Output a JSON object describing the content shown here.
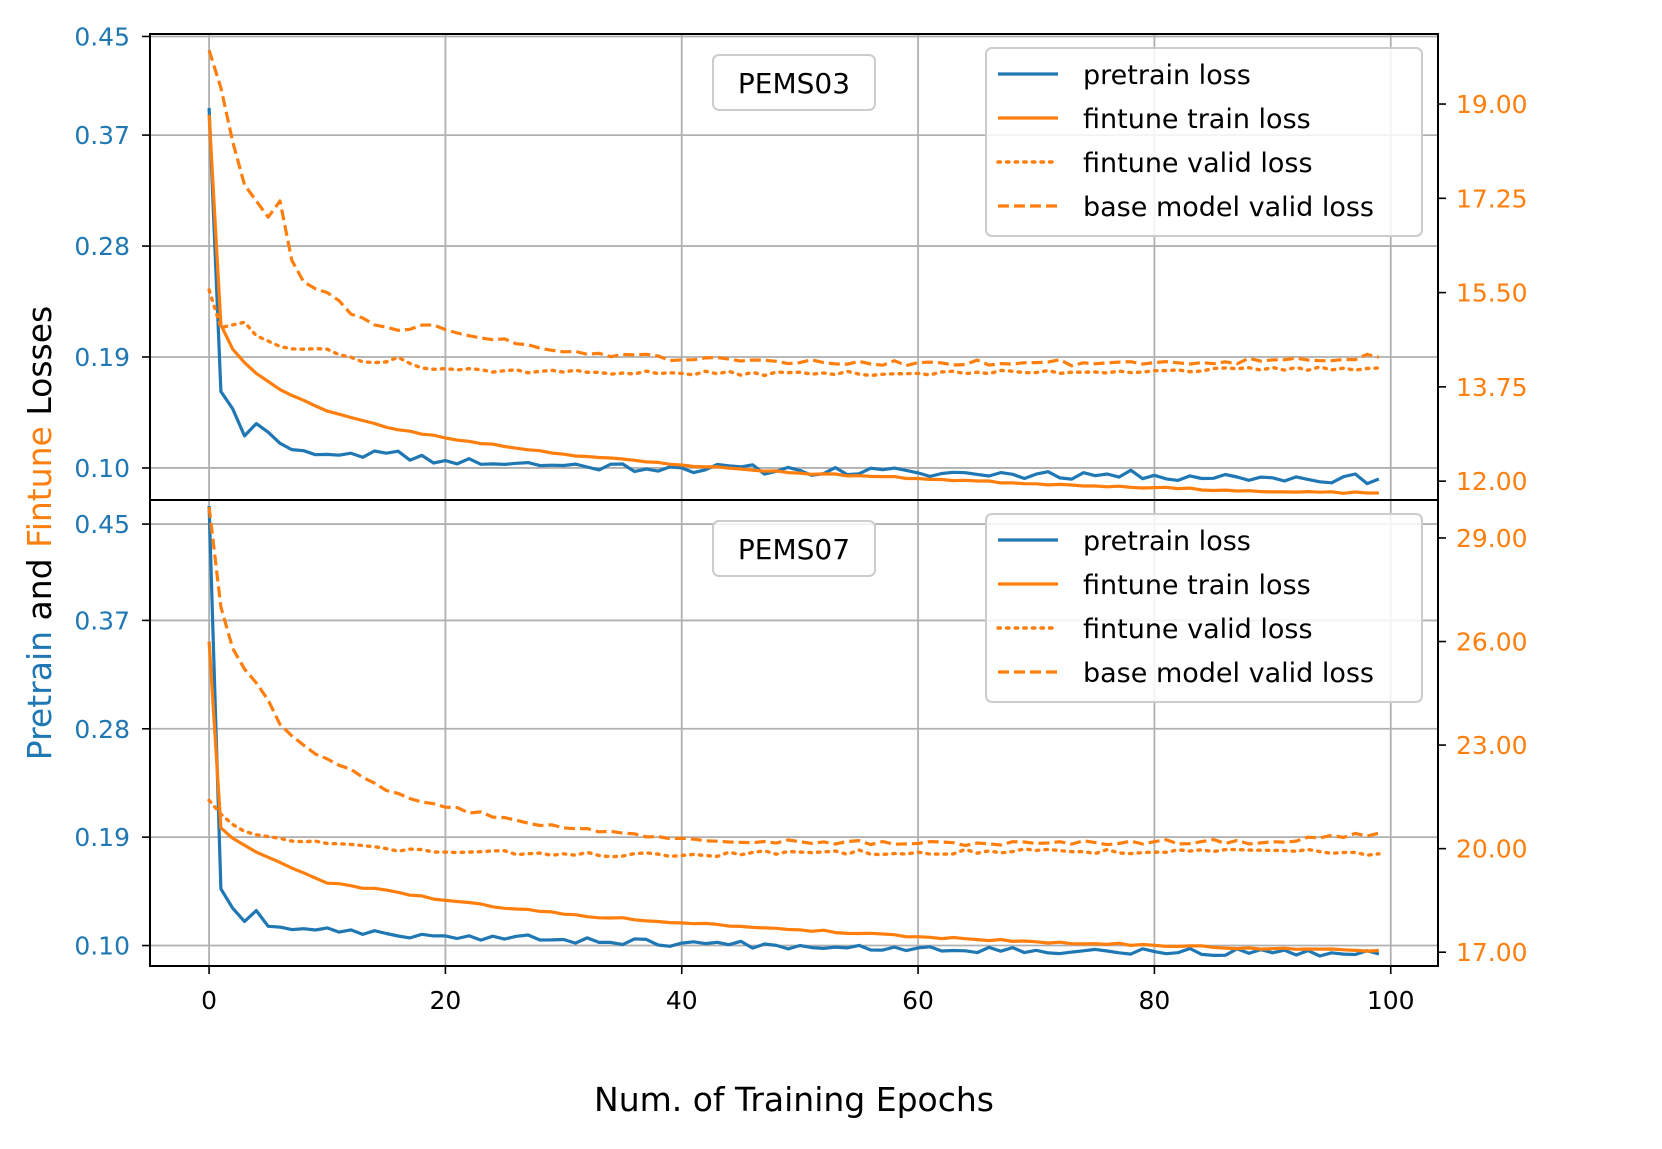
{
  "chart_data": {
    "type": "line",
    "xlabel": "Num. of Training Epochs",
    "ylabel_parts": [
      {
        "text": "Pretrain",
        "color": "#1f77b4"
      },
      {
        "text": " and ",
        "color": "#000000"
      },
      {
        "text": "Fintune",
        "color": "#ff7f0e"
      },
      {
        "text": " Losses",
        "color": "#000000"
      }
    ],
    "colors": {
      "pretrain": "#1f77b4",
      "finetune": "#ff7f0e",
      "grid": "#b0b0b0"
    },
    "xlim": [
      -5,
      104
    ],
    "xticks": [
      0,
      20,
      40,
      60,
      80,
      100
    ],
    "xtick_labels": [
      "0",
      "20",
      "40",
      "60",
      "80",
      "100"
    ],
    "legend_labels": [
      "pretrain loss",
      "fintune train loss",
      "fintune valid loss",
      "base model valid loss"
    ],
    "panels": [
      {
        "dataset": "PEMS03",
        "ylim_left": [
          0.074,
          0.452
        ],
        "yticks_left": [
          0.1,
          0.19,
          0.28,
          0.37,
          0.45
        ],
        "ytick_labels_left": [
          "0.10",
          "0.19",
          "0.28",
          "0.37",
          "0.45"
        ],
        "ylim_right": [
          11.65,
          20.3
        ],
        "yticks_right": [
          12.0,
          13.75,
          15.5,
          17.25,
          19.0
        ],
        "ytick_labels_right": [
          "12.00",
          "13.75",
          "15.50",
          "17.25",
          "19.00"
        ],
        "series": [
          {
            "name": "pretrain loss",
            "axis": "left",
            "style": "solid",
            "anchors": [
              [
                0,
                0.392
              ],
              [
                1,
                0.162
              ],
              [
                2,
                0.148
              ],
              [
                3,
                0.126
              ],
              [
                4,
                0.136
              ],
              [
                5,
                0.129
              ],
              [
                6,
                0.12
              ],
              [
                8,
                0.114
              ],
              [
                10,
                0.111
              ],
              [
                12,
                0.112
              ],
              [
                15,
                0.112
              ],
              [
                20,
                0.106
              ],
              [
                30,
                0.102
              ],
              [
                40,
                0.1
              ],
              [
                50,
                0.098
              ],
              [
                60,
                0.096
              ],
              [
                70,
                0.095
              ],
              [
                80,
                0.094
              ],
              [
                90,
                0.092
              ],
              [
                99,
                0.091
              ]
            ],
            "jitter": 0.004,
            "seed": 11
          },
          {
            "name": "fintune train loss",
            "axis": "right",
            "style": "solid",
            "anchors": [
              [
                0,
                18.8
              ],
              [
                1,
                14.9
              ],
              [
                2,
                14.45
              ],
              [
                3,
                14.2
              ],
              [
                4,
                14.0
              ],
              [
                6,
                13.7
              ],
              [
                8,
                13.5
              ],
              [
                10,
                13.3
              ],
              [
                15,
                13.0
              ],
              [
                20,
                12.8
              ],
              [
                30,
                12.5
              ],
              [
                40,
                12.3
              ],
              [
                50,
                12.15
              ],
              [
                60,
                12.05
              ],
              [
                70,
                11.95
              ],
              [
                80,
                11.88
              ],
              [
                90,
                11.8
              ],
              [
                99,
                11.78
              ]
            ],
            "jitter": 0.015,
            "seed": 23
          },
          {
            "name": "fintune valid loss",
            "axis": "right",
            "style": "dotted",
            "anchors": [
              [
                0,
                15.55
              ],
              [
                1,
                14.85
              ],
              [
                2,
                14.9
              ],
              [
                3,
                14.95
              ],
              [
                4,
                14.7
              ],
              [
                6,
                14.5
              ],
              [
                8,
                14.45
              ],
              [
                10,
                14.45
              ],
              [
                12,
                14.3
              ],
              [
                14,
                14.2
              ],
              [
                16,
                14.3
              ],
              [
                18,
                14.1
              ],
              [
                25,
                14.05
              ],
              [
                40,
                14.0
              ],
              [
                60,
                14.0
              ],
              [
                80,
                14.05
              ],
              [
                99,
                14.1
              ]
            ],
            "jitter": 0.04,
            "seed": 37
          },
          {
            "name": "base model valid loss",
            "axis": "right",
            "style": "dashed",
            "anchors": [
              [
                0,
                20.0
              ],
              [
                1,
                19.3
              ],
              [
                2,
                18.3
              ],
              [
                3,
                17.5
              ],
              [
                4,
                17.2
              ],
              [
                5,
                16.9
              ],
              [
                6,
                17.2
              ],
              [
                7,
                16.1
              ],
              [
                8,
                15.7
              ],
              [
                10,
                15.5
              ],
              [
                12,
                15.1
              ],
              [
                14,
                14.9
              ],
              [
                16,
                14.8
              ],
              [
                19,
                14.9
              ],
              [
                22,
                14.7
              ],
              [
                26,
                14.55
              ],
              [
                30,
                14.4
              ],
              [
                35,
                14.35
              ],
              [
                40,
                14.25
              ],
              [
                50,
                14.2
              ],
              [
                60,
                14.2
              ],
              [
                70,
                14.2
              ],
              [
                80,
                14.2
              ],
              [
                90,
                14.25
              ],
              [
                99,
                14.3
              ]
            ],
            "jitter": 0.06,
            "seed": 51
          }
        ]
      },
      {
        "dataset": "PEMS07",
        "ylim_left": [
          0.083,
          0.47
        ],
        "yticks_left": [
          0.1,
          0.19,
          0.28,
          0.37,
          0.45
        ],
        "ytick_labels_left": [
          "0.10",
          "0.19",
          "0.28",
          "0.37",
          "0.45"
        ],
        "ylim_right": [
          16.6,
          30.1
        ],
        "yticks_right": [
          17.0,
          20.0,
          23.0,
          26.0,
          29.0
        ],
        "ytick_labels_right": [
          "17.00",
          "20.00",
          "23.00",
          "26.00",
          "29.00"
        ],
        "series": [
          {
            "name": "pretrain loss",
            "axis": "left",
            "style": "solid",
            "anchors": [
              [
                0,
                0.465
              ],
              [
                1,
                0.147
              ],
              [
                2,
                0.131
              ],
              [
                3,
                0.12
              ],
              [
                4,
                0.129
              ],
              [
                5,
                0.116
              ],
              [
                8,
                0.114
              ],
              [
                12,
                0.113
              ],
              [
                15,
                0.11
              ],
              [
                20,
                0.108
              ],
              [
                30,
                0.105
              ],
              [
                40,
                0.102
              ],
              [
                50,
                0.1
              ],
              [
                60,
                0.098
              ],
              [
                70,
                0.096
              ],
              [
                80,
                0.095
              ],
              [
                90,
                0.094
              ],
              [
                99,
                0.093
              ]
            ],
            "jitter": 0.003,
            "seed": 67
          },
          {
            "name": "fintune train loss",
            "axis": "right",
            "style": "solid",
            "anchors": [
              [
                0,
                26.0
              ],
              [
                1,
                20.6
              ],
              [
                2,
                20.3
              ],
              [
                3,
                20.1
              ],
              [
                4,
                19.9
              ],
              [
                6,
                19.6
              ],
              [
                8,
                19.3
              ],
              [
                10,
                19.0
              ],
              [
                15,
                18.8
              ],
              [
                20,
                18.5
              ],
              [
                30,
                18.1
              ],
              [
                40,
                17.85
              ],
              [
                50,
                17.65
              ],
              [
                60,
                17.45
              ],
              [
                70,
                17.3
              ],
              [
                80,
                17.2
              ],
              [
                90,
                17.1
              ],
              [
                99,
                17.05
              ]
            ],
            "jitter": 0.03,
            "seed": 79
          },
          {
            "name": "fintune valid loss",
            "axis": "right",
            "style": "dotted",
            "anchors": [
              [
                0,
                21.4
              ],
              [
                1,
                21.0
              ],
              [
                2,
                20.7
              ],
              [
                3,
                20.5
              ],
              [
                4,
                20.4
              ],
              [
                6,
                20.3
              ],
              [
                8,
                20.2
              ],
              [
                10,
                20.15
              ],
              [
                15,
                20.0
              ],
              [
                20,
                19.9
              ],
              [
                30,
                19.85
              ],
              [
                40,
                19.8
              ],
              [
                50,
                19.9
              ],
              [
                60,
                19.9
              ],
              [
                70,
                19.95
              ],
              [
                80,
                19.9
              ],
              [
                90,
                19.95
              ],
              [
                99,
                19.85
              ]
            ],
            "jitter": 0.07,
            "seed": 83
          },
          {
            "name": "base model valid loss",
            "axis": "right",
            "style": "dashed",
            "anchors": [
              [
                0,
                29.9
              ],
              [
                1,
                27.0
              ],
              [
                2,
                25.8
              ],
              [
                3,
                25.2
              ],
              [
                4,
                24.8
              ],
              [
                5,
                24.3
              ],
              [
                6,
                23.6
              ],
              [
                8,
                23.0
              ],
              [
                10,
                22.6
              ],
              [
                12,
                22.3
              ],
              [
                14,
                21.9
              ],
              [
                16,
                21.6
              ],
              [
                20,
                21.2
              ],
              [
                25,
                20.9
              ],
              [
                30,
                20.6
              ],
              [
                35,
                20.45
              ],
              [
                40,
                20.3
              ],
              [
                50,
                20.2
              ],
              [
                60,
                20.15
              ],
              [
                70,
                20.15
              ],
              [
                80,
                20.2
              ],
              [
                90,
                20.2
              ],
              [
                99,
                20.45
              ]
            ],
            "jitter": 0.07,
            "seed": 97
          }
        ]
      }
    ]
  }
}
